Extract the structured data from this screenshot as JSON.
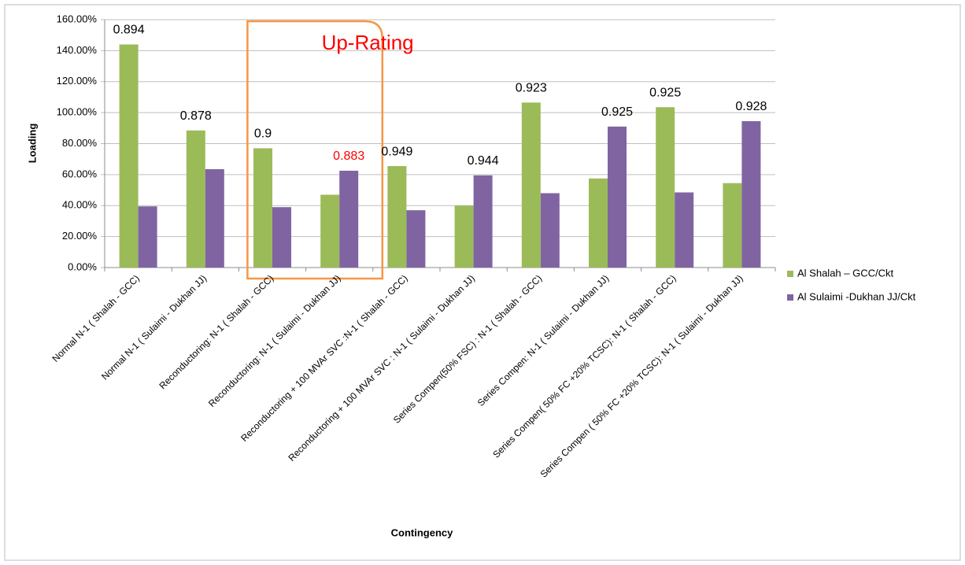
{
  "chart_data": {
    "type": "bar",
    "categories": [
      "Normal  N-1 ( Shalah - GCC)",
      "Normal  N-1 ( Sulaimi - Dukhan JJ)",
      "Reconductoring: N-1 ( Shalah - GCC)",
      "Reconductoring: N-1 ( Sulaimi - Dukhan JJ)",
      "Reconductoring + 100 MVAr SVC :N-1 ( Shalah - GCC)",
      "Reconductoring + 100 MVAr SVC : N-1 ( Sulaimi - Dukhan JJ)",
      "Series Compen(50% FSC) : N-1 ( Shalah - GCC)",
      "Series Compen: N-1 ( Sulaimi - Dukhan JJ)",
      "Series Compen( 50% FC +20% TCSC): N-1 ( Shalah - GCC)",
      "Series Compen ( 50% FC +20% TCSC): N-1 ( Sulaimi - Dukhan JJ)"
    ],
    "series": [
      {
        "name": "Al Shalah – GCC/Ckt",
        "color": "#9bbb59",
        "values": [
          144,
          88.5,
          77,
          47,
          65.5,
          40,
          106.5,
          57.5,
          103.5,
          54.5
        ]
      },
      {
        "name": "Al Sulaimi -Dukhan JJ/Ckt",
        "color": "#8064a2",
        "values": [
          39.5,
          63.5,
          39,
          62.5,
          37,
          59.5,
          48,
          91,
          48.5,
          94.5
        ]
      }
    ],
    "annotations": [
      "0.894",
      "0.878",
      "0.9",
      "0.883",
      "0.949",
      "0.944",
      "0.923",
      "0.925",
      "0.925",
      "0.928"
    ],
    "annotation_colors": [
      "#000000",
      "#000000",
      "#000000",
      "#ff0000",
      "#000000",
      "#000000",
      "#000000",
      "#000000",
      "#000000",
      "#000000"
    ],
    "highlight": {
      "label": "Up-Rating",
      "color": "#f79646",
      "text_color": "#ff0000"
    },
    "ylabel": "Loading",
    "xlabel": "Contingency",
    "ylim": [
      0,
      160
    ],
    "yticks": [
      {
        "value": 0,
        "label": "0.00%"
      },
      {
        "value": 20,
        "label": "20.00%"
      },
      {
        "value": 40,
        "label": "40.00%"
      },
      {
        "value": 60,
        "label": "60.00%"
      },
      {
        "value": 80,
        "label": "80.00%"
      },
      {
        "value": 100,
        "label": "100.00%"
      },
      {
        "value": 120,
        "label": "120.00%"
      },
      {
        "value": 140,
        "label": "140.00%"
      },
      {
        "value": 160,
        "label": "160.00%"
      }
    ],
    "grid": true,
    "legend": "right"
  }
}
